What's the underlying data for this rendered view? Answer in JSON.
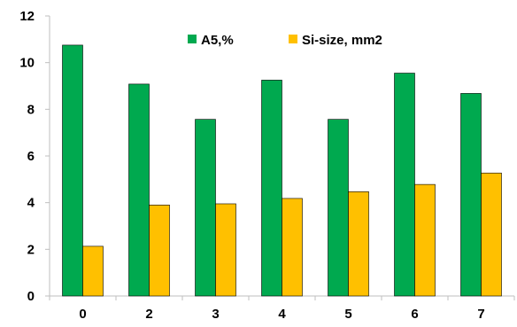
{
  "chart_data": {
    "type": "bar",
    "categories": [
      "0",
      "2",
      "3",
      "4",
      "5",
      "6",
      "7"
    ],
    "series": [
      {
        "name": "A5,%",
        "values": [
          10.75,
          9.08,
          7.57,
          9.25,
          7.57,
          9.55,
          8.68
        ],
        "color": "#00a94f"
      },
      {
        "name": "Si-size, mm2",
        "values": [
          2.13,
          3.9,
          3.95,
          4.18,
          4.47,
          4.78,
          5.27
        ],
        "color": "#ffc000"
      }
    ],
    "ylim": [
      0,
      12
    ],
    "yticks": [
      "0",
      "2",
      "4",
      "6",
      "8",
      "10",
      "12"
    ],
    "grid": false,
    "legend": "top-center"
  }
}
